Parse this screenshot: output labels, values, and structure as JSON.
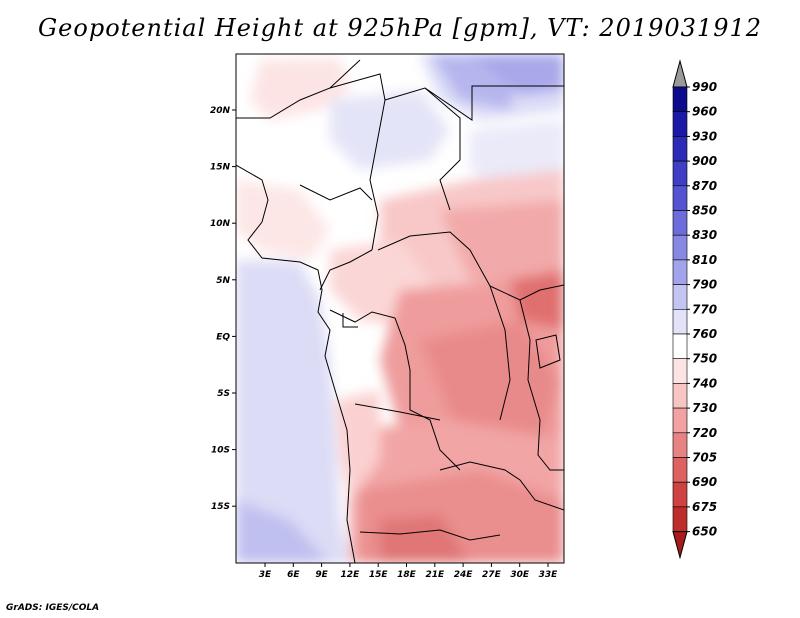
{
  "title": "Geopotential Height at 925hPa [gpm], VT: 2019031912",
  "credit": "GrADS: IGES/COLA",
  "map": {
    "lat_ticks": [
      "20N",
      "15N",
      "10N",
      "5N",
      "EQ",
      "5S",
      "10S",
      "15S"
    ],
    "lon_ticks": [
      "3E",
      "6E",
      "9E",
      "12E",
      "15E",
      "18E",
      "21E",
      "24E",
      "27E",
      "30E",
      "33E"
    ]
  },
  "colorbar": {
    "levels": [
      "990",
      "960",
      "930",
      "900",
      "870",
      "850",
      "830",
      "810",
      "790",
      "770",
      "760",
      "750",
      "740",
      "730",
      "720",
      "705",
      "690",
      "675",
      "650"
    ],
    "colors": [
      "#0b0b8c",
      "#1a1aa6",
      "#2b2bb8",
      "#3e3ec6",
      "#5454d2",
      "#6c6cdc",
      "#8787e4",
      "#a3a3ec",
      "#c4c4f3",
      "#e2e2f9",
      "#ffffff",
      "#fde4e4",
      "#f8c4c4",
      "#f2a2a2",
      "#e98282",
      "#de6262",
      "#cf4242",
      "#bf2c2c",
      "#a91a1a"
    ],
    "top_arrow_color": "#9a9a9a"
  }
}
